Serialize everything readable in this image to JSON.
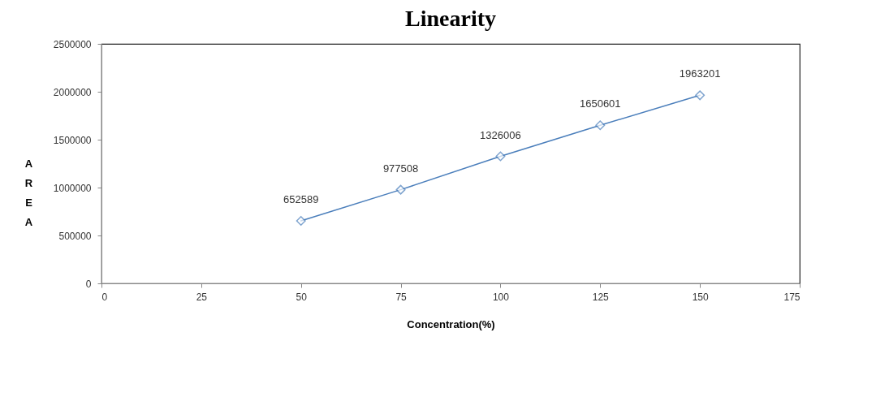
{
  "chart_data": {
    "type": "line",
    "title": "Linearity",
    "xlabel": "Concentration(%)",
    "ylabel": "AREA",
    "x": [
      50,
      75,
      100,
      125,
      150
    ],
    "series": [
      {
        "color": "#4a7ebb",
        "values": [
          652589,
          977508,
          1326006,
          1650601,
          1963201
        ]
      }
    ],
    "xlim": [
      0,
      175
    ],
    "xticks": [
      0,
      25,
      50,
      75,
      100,
      125,
      150,
      175
    ],
    "ylim": [
      0,
      2500000
    ],
    "yticks": [
      0,
      500000,
      1000000,
      1500000,
      2000000,
      2500000
    ],
    "grid": false,
    "marker": "diamond",
    "line_style": "solid",
    "data_labels": true
  }
}
